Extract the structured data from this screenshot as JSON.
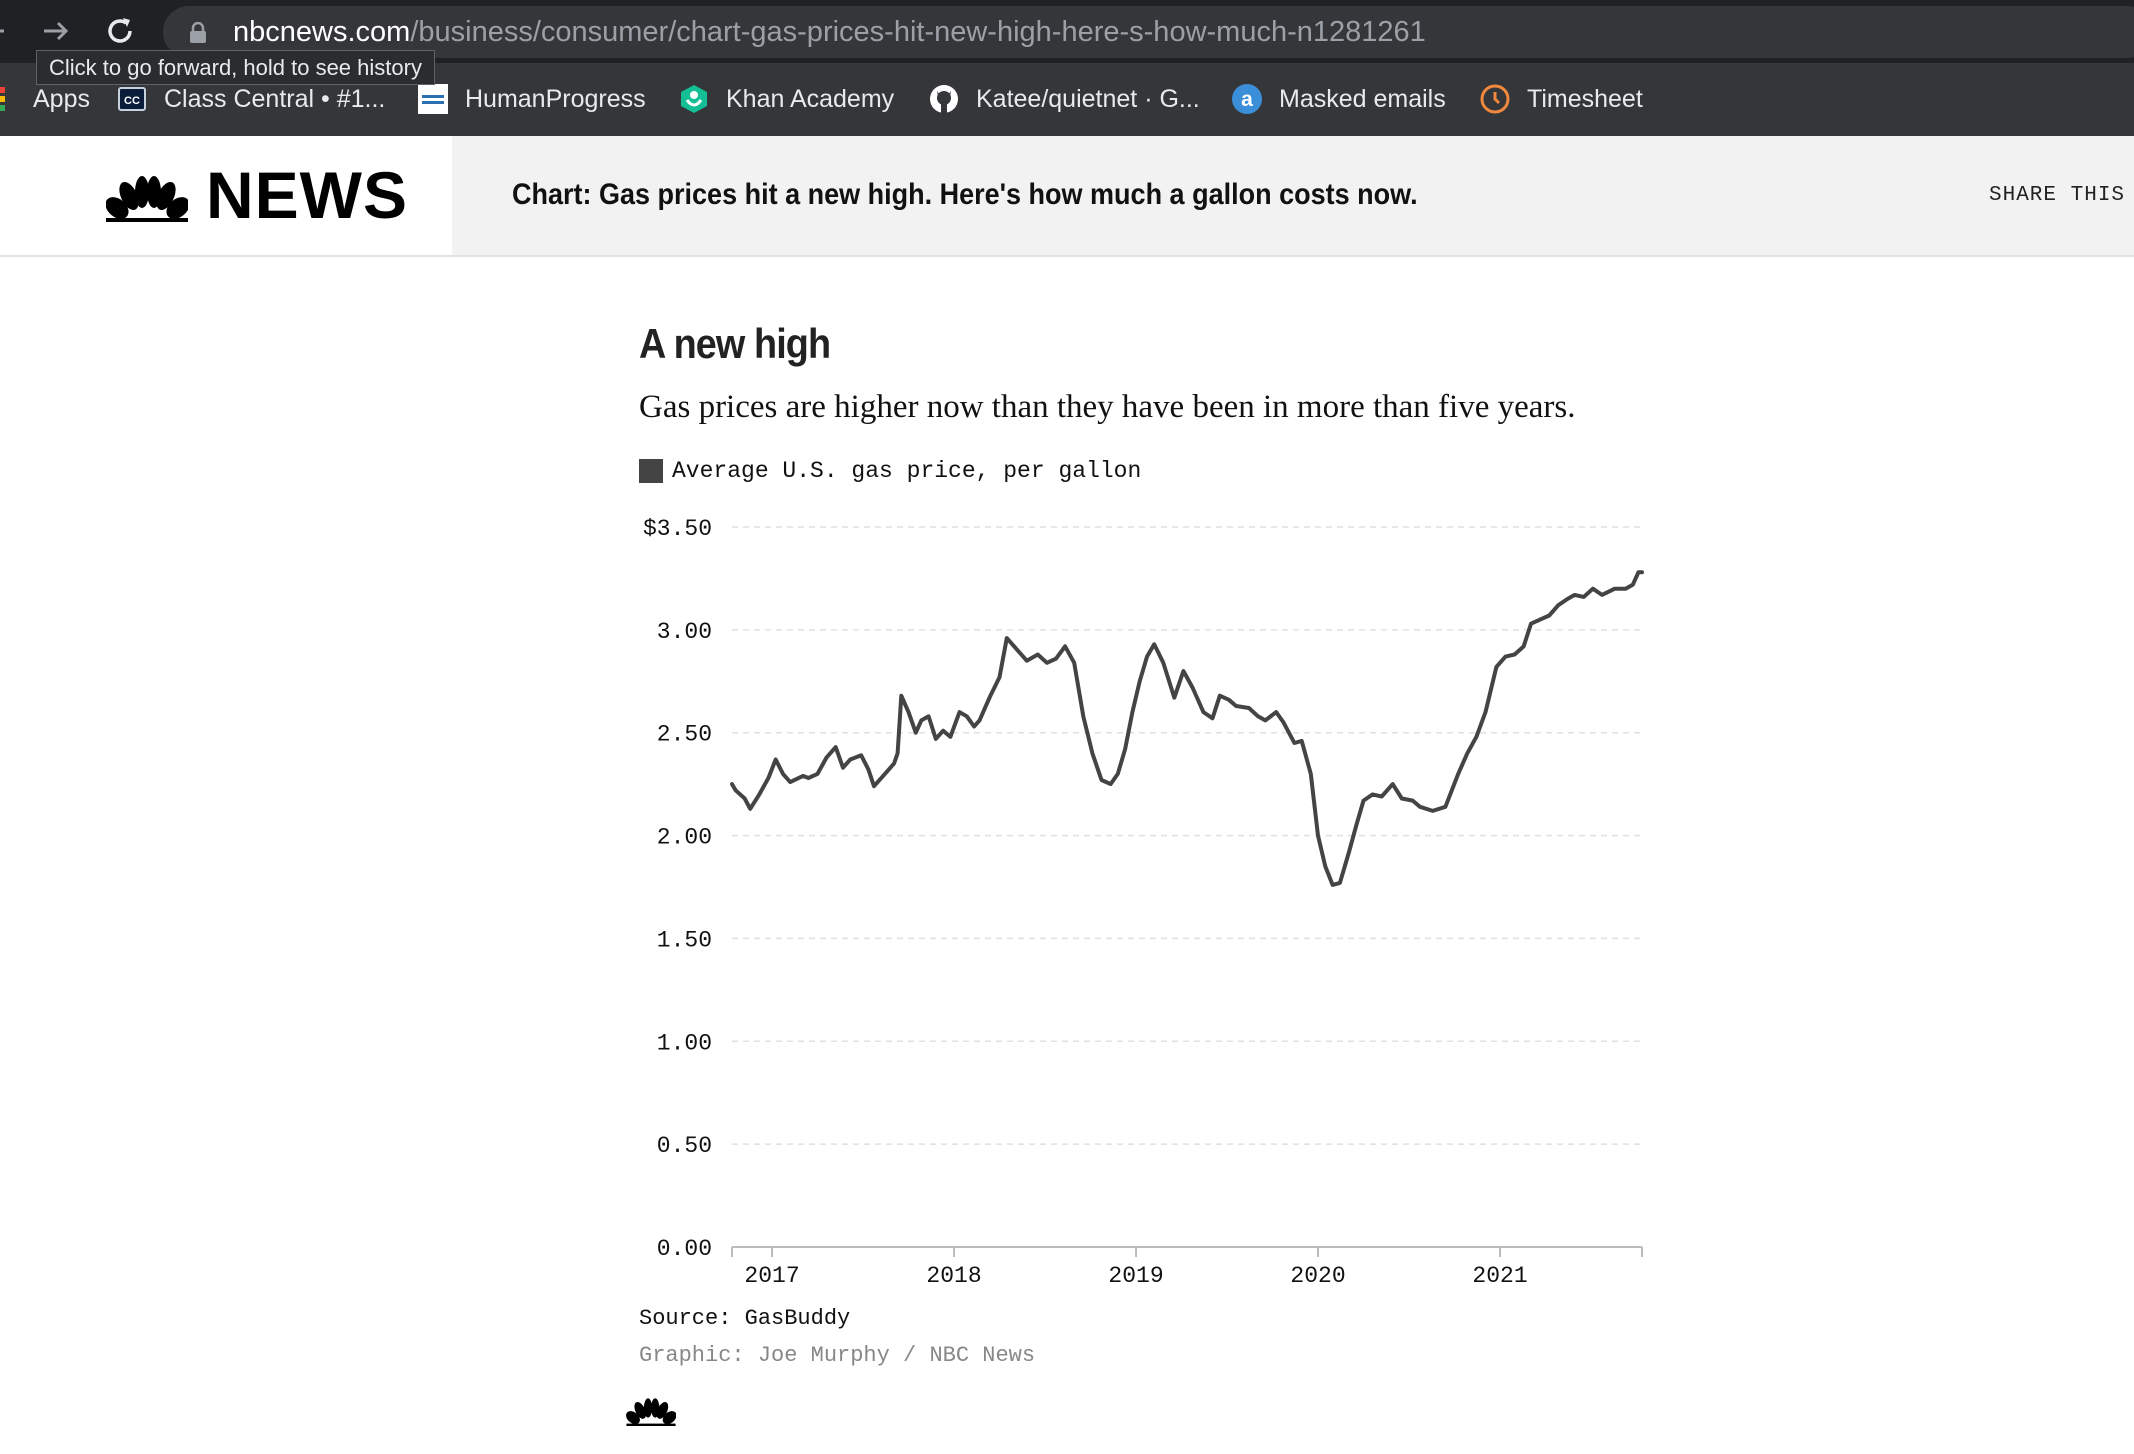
{
  "browser": {
    "url_host": "nbcnews.com",
    "url_path": "/business/consumer/chart-gas-prices-hit-new-high-here-s-how-much-n1281261",
    "tooltip": "Click to go forward, hold to see history",
    "bookmarks": [
      {
        "label": "Apps",
        "icon": "apps-grid-icon"
      },
      {
        "label": "Class Central • #1...",
        "icon": "class-central-icon"
      },
      {
        "label": "HumanProgress",
        "icon": "humanprogress-icon"
      },
      {
        "label": "Khan Academy",
        "icon": "khan-academy-icon"
      },
      {
        "label": "Katee/quietnet · G...",
        "icon": "github-icon"
      },
      {
        "label": "Masked emails",
        "icon": "masked-emails-icon"
      },
      {
        "label": "Timesheet",
        "icon": "timesheet-icon"
      }
    ]
  },
  "header": {
    "logo_text": "NEWS",
    "headline": "Chart: Gas prices hit a new high. Here's how much a gallon costs now.",
    "share_label": "SHARE THIS –"
  },
  "article": {
    "title": "A new high",
    "subtitle": "Gas prices are higher now than they have been in more than five years.",
    "source": "Source: GasBuddy",
    "credit": "Graphic: Joe Murphy / NBC News"
  },
  "chart_data": {
    "type": "line",
    "legend_position": "top-left",
    "grid": true,
    "ylim": [
      0,
      3.5
    ],
    "y_ticks": [
      "$3.50",
      "3.00",
      "2.50",
      "2.00",
      "1.50",
      "1.00",
      "0.50",
      "0.00"
    ],
    "y_tick_values": [
      3.5,
      3.0,
      2.5,
      2.0,
      1.5,
      1.0,
      0.5,
      0.0
    ],
    "x_ticks": [
      "2017",
      "2018",
      "2019",
      "2020",
      "2021"
    ],
    "x_tick_values": [
      2017.0,
      2018.0,
      2019.0,
      2020.0,
      2021.0
    ],
    "xlim": [
      2016.78,
      2021.78
    ],
    "series": [
      {
        "name": "Average U.S. gas price, per gallon",
        "color": "#444444",
        "x": [
          2016.78,
          2016.8,
          2016.85,
          2016.88,
          2016.93,
          2016.98,
          2017.02,
          2017.06,
          2017.1,
          2017.17,
          2017.2,
          2017.25,
          2017.3,
          2017.35,
          2017.39,
          2017.43,
          2017.49,
          2017.53,
          2017.56,
          2017.62,
          2017.67,
          2017.69,
          2017.71,
          2017.75,
          2017.79,
          2017.82,
          2017.86,
          2017.9,
          2017.94,
          2017.98,
          2018.03,
          2018.07,
          2018.11,
          2018.14,
          2018.2,
          2018.25,
          2018.29,
          2018.35,
          2018.4,
          2018.46,
          2018.51,
          2018.56,
          2018.61,
          2018.66,
          2018.71,
          2018.76,
          2018.81,
          2018.86,
          2018.9,
          2018.94,
          2018.98,
          2019.02,
          2019.06,
          2019.1,
          2019.15,
          2019.21,
          2019.26,
          2019.31,
          2019.37,
          2019.42,
          2019.46,
          2019.51,
          2019.55,
          2019.62,
          2019.67,
          2019.71,
          2019.77,
          2019.81,
          2019.87,
          2019.91,
          2019.96,
          2020.0,
          2020.04,
          2020.08,
          2020.12,
          2020.17,
          2020.21,
          2020.25,
          2020.3,
          2020.35,
          2020.41,
          2020.46,
          2020.52,
          2020.56,
          2020.63,
          2020.7,
          2020.77,
          2020.82,
          2020.87,
          2020.92,
          2020.98,
          2021.03,
          2021.08,
          2021.13,
          2021.17,
          2021.22,
          2021.27,
          2021.32,
          2021.37,
          2021.41,
          2021.46,
          2021.51,
          2021.56,
          2021.63,
          2021.69,
          2021.73,
          2021.76,
          2021.78
        ],
        "values": [
          2.25,
          2.22,
          2.18,
          2.13,
          2.2,
          2.28,
          2.37,
          2.3,
          2.26,
          2.29,
          2.28,
          2.3,
          2.38,
          2.43,
          2.33,
          2.37,
          2.39,
          2.32,
          2.24,
          2.3,
          2.35,
          2.4,
          2.68,
          2.6,
          2.5,
          2.56,
          2.58,
          2.47,
          2.51,
          2.48,
          2.6,
          2.58,
          2.53,
          2.56,
          2.68,
          2.77,
          2.96,
          2.9,
          2.85,
          2.88,
          2.84,
          2.86,
          2.92,
          2.84,
          2.58,
          2.4,
          2.27,
          2.25,
          2.3,
          2.42,
          2.6,
          2.75,
          2.87,
          2.93,
          2.84,
          2.67,
          2.8,
          2.72,
          2.6,
          2.57,
          2.68,
          2.66,
          2.63,
          2.62,
          2.58,
          2.56,
          2.6,
          2.55,
          2.45,
          2.46,
          2.3,
          2.0,
          1.85,
          1.76,
          1.77,
          1.92,
          2.05,
          2.17,
          2.2,
          2.19,
          2.25,
          2.18,
          2.17,
          2.14,
          2.12,
          2.14,
          2.3,
          2.4,
          2.48,
          2.6,
          2.82,
          2.87,
          2.88,
          2.92,
          3.03,
          3.05,
          3.07,
          3.12,
          3.15,
          3.17,
          3.16,
          3.2,
          3.17,
          3.2,
          3.2,
          3.22,
          3.28,
          3.28
        ]
      }
    ]
  }
}
